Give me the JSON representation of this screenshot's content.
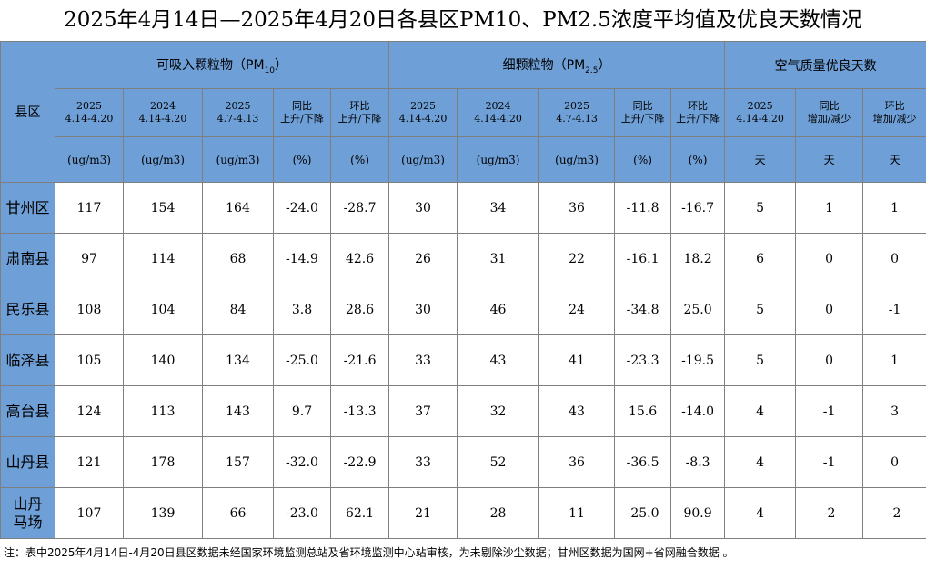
{
  "header": {
    "title": "2025年4月14日—2025年4月20日各县区PM10、PM2.5浓度平均值及优良天数情况"
  },
  "table": {
    "corner": "县区",
    "groups": [
      {
        "before": "可吸入颗粒物（PM",
        "sub": "10",
        "after": "）"
      },
      {
        "before": "细颗粒物（PM",
        "sub": "2.5",
        "after": "）"
      },
      {
        "before": "空气质量优良天数"
      }
    ],
    "columns": [
      {
        "lines": [
          "2025",
          "4.14-4.20"
        ],
        "unit": "(ug/m3)"
      },
      {
        "lines": [
          "2024",
          "4.14-4.20"
        ],
        "unit": "(ug/m3)"
      },
      {
        "lines": [
          "2025",
          "4.7-4.13"
        ],
        "unit": "(ug/m3)"
      },
      {
        "lines": [
          "同比",
          "上升/下降"
        ],
        "unit": "(%)"
      },
      {
        "lines": [
          "环比",
          "上升/下降"
        ],
        "unit": "(%)"
      },
      {
        "lines": [
          "2025",
          "4.14-4.20"
        ],
        "unit": "(ug/m3)"
      },
      {
        "lines": [
          "2024",
          "4.14-4.20"
        ],
        "unit": "(ug/m3)"
      },
      {
        "lines": [
          "2025",
          "4.7-4.13"
        ],
        "unit": "(ug/m3)"
      },
      {
        "lines": [
          "同比",
          "上升/下降"
        ],
        "unit": "(%)"
      },
      {
        "lines": [
          "环比",
          "上升/下降"
        ],
        "unit": "(%)"
      },
      {
        "lines": [
          "2025",
          "4.14-4.20"
        ],
        "unit": "天"
      },
      {
        "lines": [
          "同比",
          "增加/减少"
        ],
        "unit": "天"
      },
      {
        "lines": [
          "环比",
          "增加/减少"
        ],
        "unit": "天"
      }
    ],
    "rows": [
      {
        "name": [
          "甘州区"
        ],
        "cells": [
          "117",
          "154",
          "164",
          "-24.0",
          "-28.7",
          "30",
          "34",
          "36",
          "-11.8",
          "-16.7",
          "5",
          "1",
          "1"
        ]
      },
      {
        "name": [
          "肃南县"
        ],
        "cells": [
          "97",
          "114",
          "68",
          "-14.9",
          "42.6",
          "26",
          "31",
          "22",
          "-16.1",
          "18.2",
          "6",
          "0",
          "0"
        ]
      },
      {
        "name": [
          "民乐县"
        ],
        "cells": [
          "108",
          "104",
          "84",
          "3.8",
          "28.6",
          "30",
          "46",
          "24",
          "-34.8",
          "25.0",
          "5",
          "0",
          "-1"
        ]
      },
      {
        "name": [
          "临泽县"
        ],
        "cells": [
          "105",
          "140",
          "134",
          "-25.0",
          "-21.6",
          "33",
          "43",
          "41",
          "-23.3",
          "-19.5",
          "5",
          "0",
          "1"
        ]
      },
      {
        "name": [
          "高台县"
        ],
        "cells": [
          "124",
          "113",
          "143",
          "9.7",
          "-13.3",
          "37",
          "32",
          "43",
          "15.6",
          "-14.0",
          "4",
          "-1",
          "3"
        ]
      },
      {
        "name": [
          "山丹县"
        ],
        "cells": [
          "121",
          "178",
          "157",
          "-32.0",
          "-22.9",
          "33",
          "52",
          "36",
          "-36.5",
          "-8.3",
          "4",
          "-1",
          "0"
        ]
      },
      {
        "name": [
          "山丹",
          "马场"
        ],
        "cells": [
          "107",
          "139",
          "66",
          "-23.0",
          "62.1",
          "21",
          "28",
          "11",
          "-25.0",
          "90.9",
          "4",
          "-2",
          "-2"
        ]
      }
    ]
  },
  "note": "注：表中2025年4月14日-4月20日县区数据未经国家环境监测总站及省环境监测中心站审核，为未剔除沙尘数据；甘州区数据为国网+省网融合数据 。"
}
